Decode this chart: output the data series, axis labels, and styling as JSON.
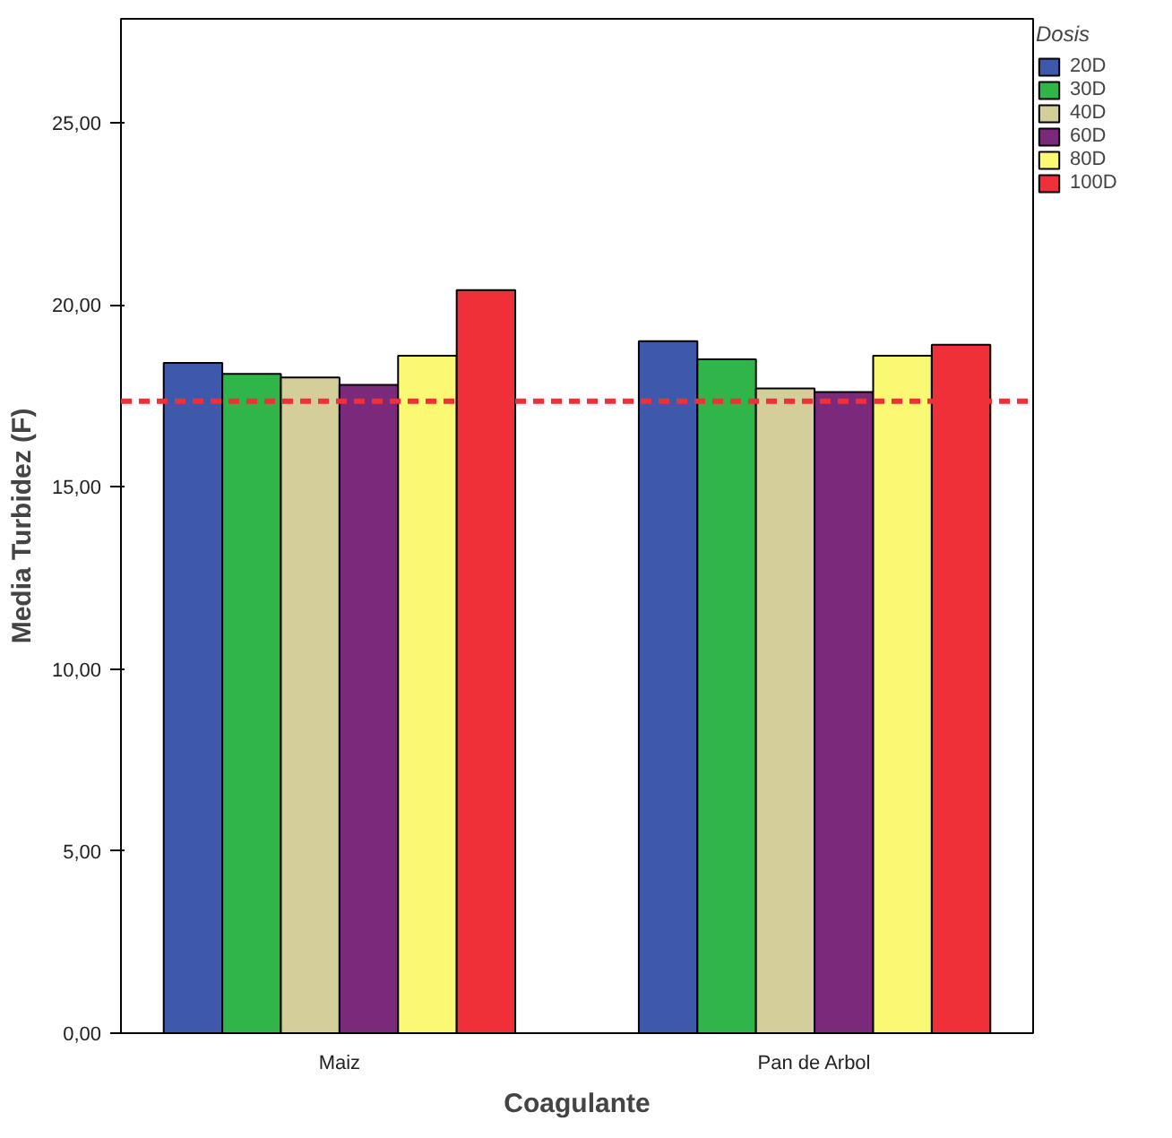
{
  "chart_data": {
    "type": "bar",
    "xlabel": "Coagulante",
    "ylabel": "Media Turbidez (F)",
    "legend_title": "Dosis",
    "categories": [
      "Maiz",
      "Pan de Arbol"
    ],
    "series": [
      {
        "name": "20D",
        "color": "#3e58ac",
        "values": [
          18.4,
          19.0
        ]
      },
      {
        "name": "30D",
        "color": "#2fb548",
        "values": [
          18.1,
          18.5
        ]
      },
      {
        "name": "40D",
        "color": "#d4ce9a",
        "values": [
          18.0,
          17.7
        ]
      },
      {
        "name": "60D",
        "color": "#7b2a7b",
        "values": [
          17.8,
          17.6
        ]
      },
      {
        "name": "80D",
        "color": "#fbf873",
        "values": [
          18.6,
          18.6
        ]
      },
      {
        "name": "100D",
        "color": "#ef3039",
        "values": [
          20.4,
          18.9
        ]
      }
    ],
    "ylim": [
      0,
      27.85
    ],
    "yticks": [
      {
        "value": 0,
        "label": "0,00"
      },
      {
        "value": 5,
        "label": "5,00"
      },
      {
        "value": 10,
        "label": "10,00"
      },
      {
        "value": 15,
        "label": "15,00"
      },
      {
        "value": 20,
        "label": "20,00"
      },
      {
        "value": 25,
        "label": "25,00"
      }
    ],
    "ref_lines": [
      {
        "axis": "y",
        "value": 17.35,
        "label": null,
        "color": "#ef3039",
        "line_style": "dashed"
      }
    ],
    "grid": false,
    "legend": "right"
  }
}
